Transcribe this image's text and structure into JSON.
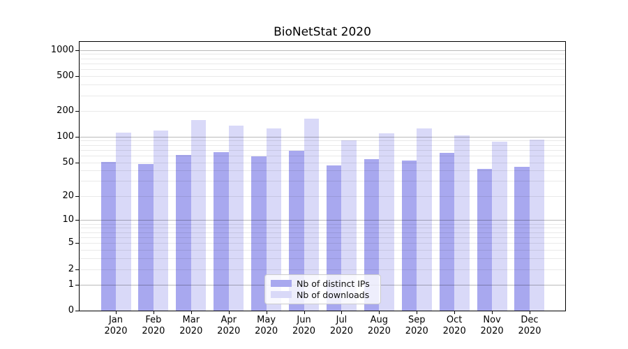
{
  "chart_data": {
    "type": "bar",
    "title": "BioNetStat 2020",
    "categories": [
      "Jan",
      "Feb",
      "Mar",
      "Apr",
      "May",
      "Jun",
      "Jul",
      "Aug",
      "Sep",
      "Oct",
      "Nov",
      "Dec"
    ],
    "x_year_label": "2020",
    "series": [
      {
        "name": "Nb of distinct IPs",
        "color": "#a8a8ef",
        "values": [
          51,
          48,
          61,
          66,
          59,
          68,
          46,
          55,
          53,
          65,
          42,
          44
        ]
      },
      {
        "name": "Nb of downloads",
        "color": "#d9d9f8",
        "values": [
          111,
          117,
          157,
          135,
          125,
          160,
          90,
          110,
          125,
          104,
          87,
          92
        ]
      }
    ],
    "y_scale": "log10(1+y)",
    "ylim": [
      0,
      1244
    ],
    "y_ticks": [
      0,
      1,
      2,
      5,
      10,
      20,
      50,
      100,
      200,
      500,
      1000
    ],
    "y_major_gridlines": [
      1,
      10,
      100,
      1000
    ],
    "y_minor_gridlines": [
      2,
      5,
      20,
      50,
      200,
      500,
      3,
      4,
      6,
      7,
      8,
      9,
      30,
      40,
      60,
      70,
      80,
      90,
      300,
      400,
      600,
      700,
      800,
      900
    ],
    "grid": "on",
    "legend_position": "lower-center",
    "xlabel": "",
    "ylabel": ""
  },
  "legend": {
    "items": [
      {
        "label": "Nb of distinct IPs",
        "color": "#a8a8ef"
      },
      {
        "label": "Nb of downloads",
        "color": "#d9d9f8"
      }
    ]
  },
  "colors": {
    "background": "#ffffff",
    "spine": "#000000",
    "major_grid": "#b3b3b3",
    "minor_grid": "#e8e8e8",
    "legend_border": "#cccccc"
  }
}
